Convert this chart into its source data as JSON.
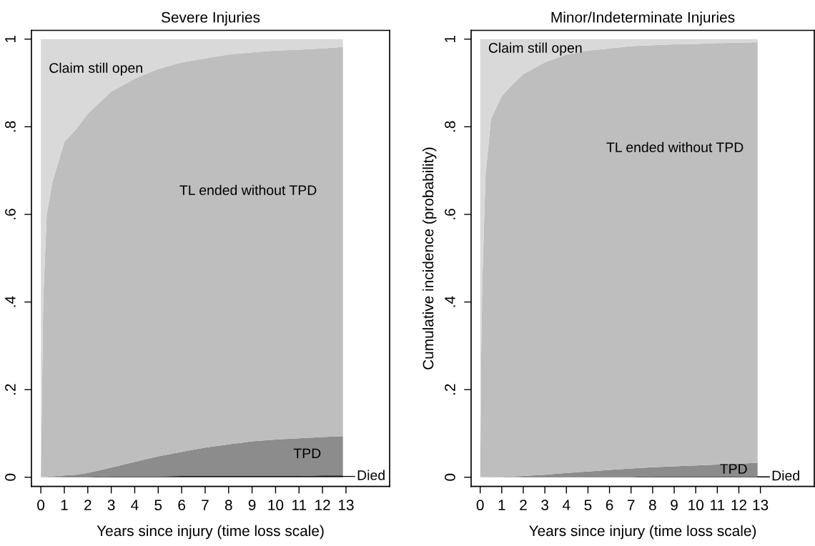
{
  "chart_data": [
    {
      "type": "area",
      "stacked": true,
      "title": "Severe Injuries",
      "xlabel": "Years since injury (time loss scale)",
      "x": [
        0,
        0.05,
        0.1,
        0.25,
        0.5,
        1,
        1.5,
        2,
        3,
        4,
        5,
        6,
        7,
        8,
        9,
        10,
        11,
        12,
        12.87
      ],
      "series": [
        {
          "name": "Died",
          "color": "#1a1a1a",
          "values": [
            0,
            0,
            0,
            0,
            0,
            0.001,
            0.001,
            0.001,
            0.002,
            0.002,
            0.002,
            0.003,
            0.003,
            0.003,
            0.003,
            0.003,
            0.003,
            0.004,
            0.004
          ]
        },
        {
          "name": "TPD",
          "color": "#8c8c8c",
          "values": [
            0,
            0,
            0,
            0.001,
            0.002,
            0.003,
            0.005,
            0.009,
            0.02,
            0.033,
            0.046,
            0.055,
            0.065,
            0.072,
            0.079,
            0.083,
            0.086,
            0.088,
            0.09
          ]
        },
        {
          "name": "TL ended without TPD",
          "color": "#bebebe",
          "values": [
            0,
            0.2,
            0.4,
            0.599,
            0.674,
            0.761,
            0.788,
            0.82,
            0.858,
            0.875,
            0.884,
            0.889,
            0.888,
            0.89,
            0.888,
            0.888,
            0.887,
            0.887,
            0.888
          ]
        },
        {
          "name": "Claim still open",
          "color": "#d9d9d9",
          "values": [
            1,
            0.8,
            0.6,
            0.4,
            0.324,
            0.235,
            0.206,
            0.17,
            0.12,
            0.09,
            0.068,
            0.053,
            0.044,
            0.035,
            0.03,
            0.026,
            0.024,
            0.021,
            0.018
          ]
        }
      ],
      "xlim": [
        -0.4,
        14.86
      ],
      "ylim": [
        -0.021,
        1.02
      ],
      "xticks": [
        0,
        1,
        2,
        3,
        4,
        5,
        6,
        7,
        8,
        9,
        10,
        11,
        12,
        13
      ],
      "yticks": [
        {
          "value": 0,
          "label": "0"
        },
        {
          "value": 0.2,
          "label": ".2"
        },
        {
          "value": 0.4,
          "label": ".4"
        },
        {
          "value": 0.6,
          "label": ".6"
        },
        {
          "value": 0.8,
          "label": ".8"
        },
        {
          "value": 1,
          "label": "1"
        }
      ]
    },
    {
      "type": "area",
      "stacked": true,
      "title": "Minor/Indeterminate Injuries",
      "xlabel": "Years since injury (time loss scale)",
      "ylabel": "Cumulative incidence (probability)",
      "x": [
        0,
        0.05,
        0.1,
        0.25,
        0.5,
        1,
        1.5,
        2,
        3,
        4,
        5,
        6,
        7,
        8,
        9,
        10,
        11,
        12,
        12.87
      ],
      "series": [
        {
          "name": "Died",
          "color": "#1a1a1a",
          "values": [
            0,
            0,
            0,
            0,
            0,
            0,
            0,
            0.001,
            0.001,
            0.001,
            0.001,
            0.001,
            0.001,
            0.002,
            0.002,
            0.002,
            0.002,
            0.002,
            0.002
          ]
        },
        {
          "name": "TPD",
          "color": "#8c8c8c",
          "values": [
            0,
            0,
            0,
            0,
            0.001,
            0.001,
            0.002,
            0.002,
            0.005,
            0.009,
            0.012,
            0.016,
            0.019,
            0.021,
            0.023,
            0.025,
            0.027,
            0.029,
            0.031
          ]
        },
        {
          "name": "TL ended without TPD",
          "color": "#bebebe",
          "values": [
            0,
            0.3,
            0.45,
            0.69,
            0.817,
            0.869,
            0.895,
            0.917,
            0.941,
            0.955,
            0.961,
            0.962,
            0.964,
            0.963,
            0.963,
            0.962,
            0.962,
            0.961,
            0.96
          ]
        },
        {
          "name": "Claim still open",
          "color": "#d9d9d9",
          "values": [
            1,
            0.7,
            0.55,
            0.31,
            0.182,
            0.13,
            0.103,
            0.08,
            0.053,
            0.035,
            0.026,
            0.021,
            0.016,
            0.014,
            0.012,
            0.011,
            0.009,
            0.008,
            0.007
          ]
        }
      ],
      "xlim": [
        -0.42,
        15.5
      ],
      "ylim": [
        -0.021,
        1.02
      ],
      "xticks": [
        0,
        1,
        2,
        3,
        4,
        5,
        6,
        7,
        8,
        9,
        10,
        11,
        12,
        13
      ],
      "yticks": [
        {
          "value": 0,
          "label": "0"
        },
        {
          "value": 0.2,
          "label": ".2"
        },
        {
          "value": 0.4,
          "label": ".4"
        },
        {
          "value": 0.6,
          "label": ".6"
        },
        {
          "value": 0.8,
          "label": ".8"
        },
        {
          "value": 1,
          "label": "1"
        }
      ]
    }
  ]
}
